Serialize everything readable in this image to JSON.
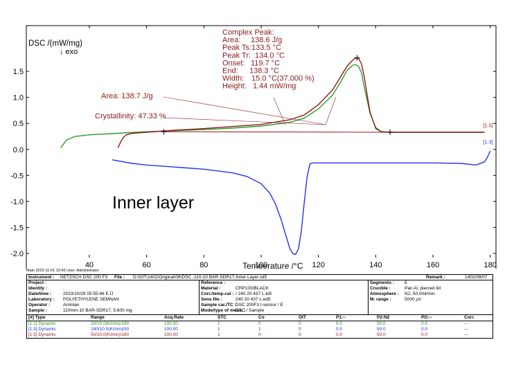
{
  "chart_data": {
    "type": "line",
    "ylabel": "DSC /(mW/mg)",
    "ylabel2": "↓ exo",
    "xlabel": "Temperature /°C",
    "xlim": [
      18,
      182
    ],
    "ylim": [
      -2.08,
      2.38
    ],
    "x_ticks": [
      40,
      60,
      80,
      100,
      120,
      140,
      160,
      180
    ],
    "y_ticks": [
      "1.5",
      "1.0",
      "0.5",
      "0.0",
      "-0.5",
      "-1.0",
      "-1.5",
      "-2.0"
    ],
    "y_tick_values": [
      1.5,
      1.0,
      0.5,
      0.0,
      -0.5,
      -1.0,
      -1.5,
      -2.0
    ],
    "annotation_text": "Inner layer",
    "series": [
      {
        "name": "[1.1]",
        "color": "#2a9a2a",
        "x": [
          30,
          32,
          35,
          40,
          50,
          60,
          70,
          80,
          90,
          100,
          110,
          115,
          120,
          125,
          128,
          130,
          132,
          133,
          134,
          135,
          136,
          137,
          138,
          140,
          142,
          145,
          150,
          160,
          170,
          178
        ],
        "y": [
          0.03,
          0.18,
          0.25,
          0.28,
          0.31,
          0.34,
          0.36,
          0.38,
          0.41,
          0.45,
          0.52,
          0.6,
          0.78,
          1.05,
          1.32,
          1.52,
          1.62,
          1.63,
          1.6,
          1.48,
          1.2,
          0.95,
          0.7,
          0.42,
          0.34,
          0.33,
          0.33,
          0.33,
          0.33,
          0.33
        ]
      },
      {
        "name": "[1.5]",
        "color": "#8b1a1a",
        "x": [
          50,
          51,
          52,
          53,
          55,
          60,
          70,
          80,
          90,
          100,
          110,
          115,
          120,
          125,
          128,
          130,
          132,
          133,
          134,
          135,
          136,
          137,
          138,
          140,
          142,
          145,
          150,
          160,
          170,
          178
        ],
        "y": [
          0.03,
          0.15,
          0.24,
          0.28,
          0.31,
          0.33,
          0.37,
          0.4,
          0.44,
          0.48,
          0.57,
          0.66,
          0.86,
          1.15,
          1.42,
          1.6,
          1.72,
          1.76,
          1.75,
          1.65,
          1.4,
          1.05,
          0.72,
          0.4,
          0.34,
          0.33,
          0.33,
          0.33,
          0.33,
          0.33
        ]
      },
      {
        "name": "[1.3]",
        "color": "#2233ee",
        "x": [
          48,
          55,
          60,
          70,
          80,
          90,
          95,
          100,
          103,
          105,
          107,
          109,
          110,
          111,
          112,
          113,
          114,
          115,
          116,
          117,
          118,
          119,
          120,
          125,
          130,
          140,
          150,
          160,
          170,
          175,
          178,
          179,
          180
        ],
        "y": [
          -0.2,
          -0.27,
          -0.3,
          -0.34,
          -0.38,
          -0.45,
          -0.52,
          -0.66,
          -0.84,
          -1.05,
          -1.35,
          -1.72,
          -1.9,
          -2.0,
          -2.02,
          -1.92,
          -1.58,
          -1.05,
          -0.55,
          -0.28,
          -0.26,
          -0.26,
          -0.26,
          -0.26,
          -0.26,
          -0.26,
          -0.26,
          -0.26,
          -0.27,
          -0.3,
          -0.24,
          -0.15,
          -0.03
        ]
      }
    ],
    "integration_line": {
      "color": "#8b1a1a",
      "x": [
        66,
        145
      ],
      "y": [
        0.34,
        0.33
      ]
    },
    "series_labels": [
      {
        "text": "[1.5]",
        "color": "#8b1a1a",
        "x": 180,
        "y": 0.43
      },
      {
        "text": "[1.3]",
        "color": "#2233ee",
        "x": 180,
        "y": 0.11
      }
    ],
    "peak_annotation": {
      "color": "#8b1a1a",
      "title": "Complex Peak:",
      "rows": [
        {
          "label": "Area:",
          "value": "138.6 J/g"
        },
        {
          "label": "Peak Ts:",
          "value": "133.5 °C"
        },
        {
          "label": "Peak Tr:",
          "value": "134.0 °C"
        },
        {
          "label": "Onset:",
          "value": "119.7 °C"
        },
        {
          "label": "End:",
          "value": "138.3 °C"
        },
        {
          "label": "Width:",
          "value": "15.0 °C(37.000 %)"
        },
        {
          "label": "Height:",
          "value": "1.44 mW/mg"
        }
      ]
    },
    "area_annotation": "Area: 138.7 J/g",
    "crystallinity_annotation": "Crystallinity: 47.33 %",
    "markers": [
      {
        "x": 66,
        "y": 0.34
      },
      {
        "x": 145,
        "y": 0.33
      },
      {
        "x": 133.5,
        "y": 1.76
      }
    ]
  },
  "footer": {
    "main_line": "Main   2023-11-01 10:43   User: Administrator",
    "instrument_label": "Instrument :",
    "instrument": "NETZSCH DSC 200 F3",
    "file_label": "File :",
    "file": "D:\\OIT\\1402\\Original\\08\\DSC -110-10 BAR-SDR17-Inner Layer.sd5",
    "remark_label": "Remark :",
    "remark": "1402/08/07",
    "left_info": [
      {
        "label": "Project :",
        "value": ""
      },
      {
        "label": "Identity :",
        "value": "."
      },
      {
        "label": "Date/time :",
        "value": "2023/10/29 05:55:46 E.Ü"
      },
      {
        "label": "Laboratory :",
        "value": "POLYETHYLENE SEMNAN"
      },
      {
        "label": "Operator :",
        "value": "Aminian"
      },
      {
        "label": "Sample :",
        "value": "110mm-10 BAR-SDR17, 5.600 mg"
      }
    ],
    "mid_info": [
      {
        "label": "Reference :",
        "value": ""
      },
      {
        "label": "Material :",
        "value": "CRP100/BLACK"
      },
      {
        "label": "Corr./temp.cal :",
        "value": "/ 240 20 437 L.td5"
      },
      {
        "label": "Sens.file :",
        "value": "240 20 437 L.ed5"
      },
      {
        "label": "Sample car./TC :",
        "value": "DSC 200F3 t-sensor / E"
      },
      {
        "label": "Mode/type of meas. :",
        "value": "DSC / Sample"
      }
    ],
    "right_info": [
      {
        "label": "Segments :",
        "value": "6"
      },
      {
        "label": "Crucible :",
        "value": "Pan Al, pierced lid"
      },
      {
        "label": "Atmosphere :",
        "value": "N2, 50.0ml/min"
      },
      {
        "label": "M. range :",
        "value": "5000 µV"
      }
    ],
    "seg_headers": [
      "[#] Type",
      "Range",
      "Acq.Rate",
      "STC",
      "Co",
      "OIT",
      "P1:--",
      "P2:N2",
      "PG:--",
      "Corr."
    ],
    "segments": [
      {
        "color": "#1a8a1a",
        "cells": [
          "[1.1] Dynamic",
          "20/10.0(K/min)/180",
          "100.00",
          "1",
          "0",
          "0",
          "0.0",
          "50.0",
          "0.0",
          "---"
        ]
      },
      {
        "color": "#1a2ed8",
        "cells": [
          "[1.3] Dynamic",
          "180/10.0(K/min)/50",
          "100.00",
          "1",
          "1",
          "0",
          "0.0",
          "50.0",
          "0.0",
          "---"
        ]
      },
      {
        "color": "#8b1a1a",
        "cells": [
          "[1.5] Dynamic",
          "50/10.0(K/min)/180",
          "100.00",
          "1",
          "0",
          "0",
          "0.0",
          "50.0",
          "0.0",
          "---"
        ]
      }
    ]
  }
}
